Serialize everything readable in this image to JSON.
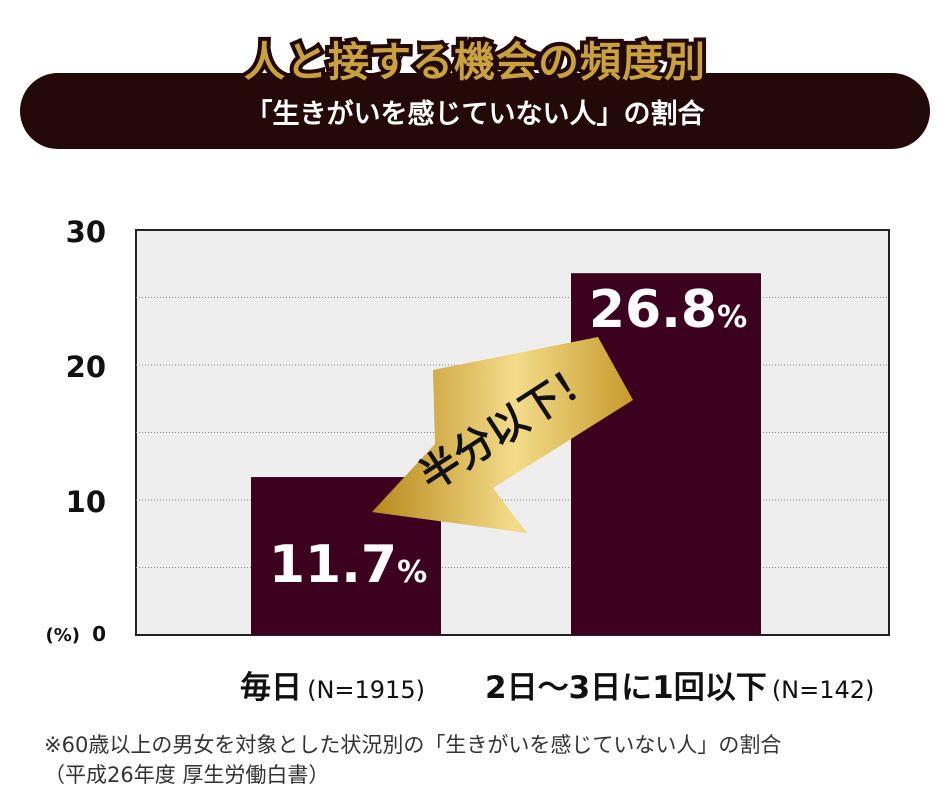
{
  "header": {
    "title": "人と接する機会の頻度別",
    "subtitle": "「生きがいを感じていない人」の割合"
  },
  "chart_data": {
    "type": "bar",
    "categories": [
      "毎日",
      "2日〜3日に1回以下"
    ],
    "sample_sizes": [
      "(N=1915)",
      "(N=142)"
    ],
    "values": [
      11.7,
      26.8
    ],
    "value_labels": [
      "11.7",
      "26.8"
    ],
    "value_unit": "%",
    "ylim": [
      0,
      30
    ],
    "yticks": [
      0,
      10,
      20,
      30
    ],
    "y_unit_label": "(%)",
    "grid": true,
    "annotation": "半分以下！",
    "colors": {
      "bar": "#3d0120",
      "plot_bg": "#eeeeee",
      "arrow_light": "#f3dc8a",
      "arrow_dark": "#b8891b"
    }
  },
  "footnote": {
    "line1": "※60歳以上の男女を対象とした状況別の「生きがいを感じていない人」の割合",
    "line2": "（平成26年度 厚生労働白書）"
  }
}
